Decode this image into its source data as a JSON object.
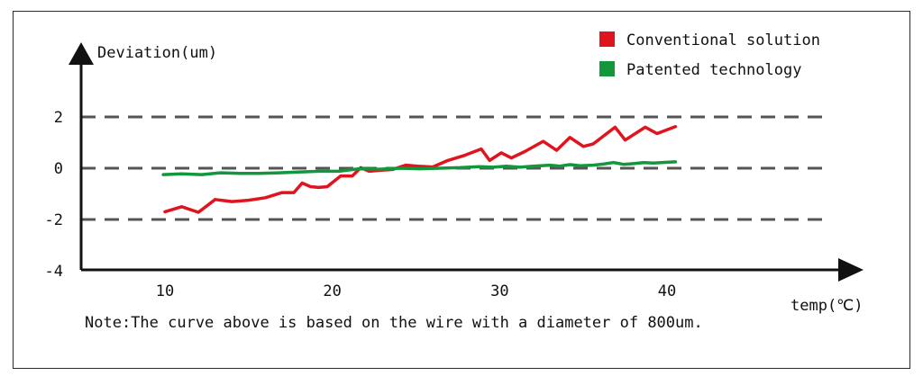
{
  "chart_data": {
    "type": "line",
    "title": "",
    "xlabel": "temp(℃)",
    "ylabel": "Deviation(um)",
    "xlim": [
      5,
      50
    ],
    "ylim": [
      -4,
      4
    ],
    "xticks": [
      10,
      20,
      30,
      40
    ],
    "yticks": [
      -4,
      -2,
      0,
      2
    ],
    "ytick_labels": [
      "-4",
      "-2",
      "0",
      "2"
    ],
    "grid": "dashed horizontal at -2, 0, 2",
    "legend": "top-right",
    "series": [
      {
        "name": "Conventional solution",
        "color": "#e0141e",
        "x": [
          10,
          11,
          12,
          13,
          14,
          15,
          16,
          17,
          17.7,
          18.2,
          18.7,
          19.2,
          19.7,
          20.5,
          21.2,
          21.7,
          22.2,
          22.9,
          23.6,
          24.4,
          25.1,
          26,
          26.9,
          27.9,
          28.9,
          29.4,
          30.1,
          30.7,
          31.5,
          32.6,
          33.4,
          34.2,
          35,
          35.6,
          36.3,
          36.9,
          37.5,
          38.7,
          39.4,
          40.5
        ],
        "y": [
          -1.7,
          -1.5,
          -1.72,
          -1.22,
          -1.3,
          -1.25,
          -1.15,
          -0.95,
          -0.95,
          -0.58,
          -0.72,
          -0.75,
          -0.72,
          -0.3,
          -0.3,
          0.02,
          -0.12,
          -0.08,
          -0.05,
          0.12,
          0.08,
          0.05,
          0.3,
          0.5,
          0.75,
          0.3,
          0.6,
          0.4,
          0.65,
          1.05,
          0.7,
          1.2,
          0.85,
          0.95,
          1.3,
          1.6,
          1.1,
          1.6,
          1.35,
          1.62
        ]
      },
      {
        "name": "Patented technology",
        "color": "#13963c",
        "x": [
          9.9,
          11,
          12.2,
          13.3,
          14.5,
          15.6,
          16.8,
          18,
          19.2,
          20.4,
          21.6,
          22.8,
          24,
          25.2,
          26.4,
          27.6,
          28.8,
          29.6,
          30.4,
          31.2,
          32,
          33,
          33.6,
          34.2,
          34.8,
          35.6,
          36.2,
          36.8,
          37.4,
          38,
          38.6,
          39.2,
          40.5
        ],
        "y": [
          -0.25,
          -0.22,
          -0.25,
          -0.18,
          -0.2,
          -0.2,
          -0.18,
          -0.15,
          -0.12,
          -0.12,
          -0.02,
          -0.04,
          0.0,
          -0.02,
          0.0,
          0.02,
          0.06,
          0.04,
          0.08,
          0.04,
          0.08,
          0.12,
          0.08,
          0.14,
          0.1,
          0.12,
          0.16,
          0.22,
          0.15,
          0.18,
          0.22,
          0.2,
          0.25
        ]
      }
    ]
  },
  "note": "Note:The curve above is based on the wire with a diameter of 800um."
}
